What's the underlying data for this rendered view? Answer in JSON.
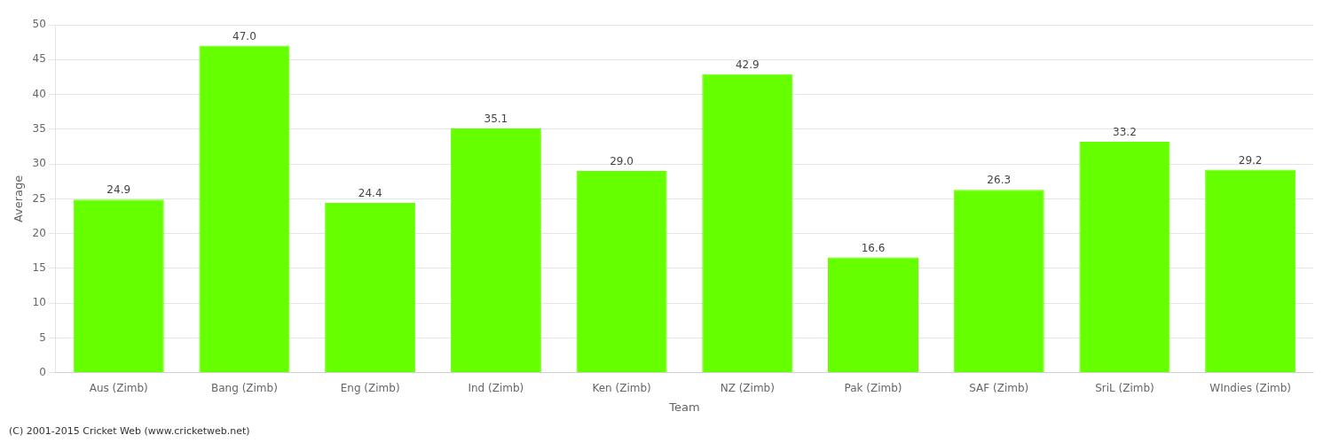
{
  "chart_data": {
    "type": "bar",
    "xlabel": "Team",
    "ylabel": "Average",
    "categories": [
      "Aus (Zimb)",
      "Bang (Zimb)",
      "Eng (Zimb)",
      "Ind (Zimb)",
      "Ken (Zimb)",
      "NZ (Zimb)",
      "Pak (Zimb)",
      "SAF (Zimb)",
      "SriL (Zimb)",
      "WIndies (Zimb)"
    ],
    "values": [
      24.9,
      47.0,
      24.4,
      35.1,
      29.0,
      42.9,
      16.6,
      26.3,
      33.2,
      29.2
    ],
    "value_labels": [
      "24.9",
      "47.0",
      "24.4",
      "35.1",
      "29.0",
      "42.9",
      "16.6",
      "26.3",
      "33.2",
      "29.2"
    ],
    "data_labels": true,
    "color": "#66ff00",
    "ylim": [
      0,
      50
    ],
    "yticks": [
      0,
      5,
      10,
      15,
      20,
      25,
      30,
      35,
      40,
      45,
      50
    ],
    "grid": true,
    "annotations": [
      "(C) 2001-2015 Cricket Web (www.cricketweb.net)"
    ]
  }
}
